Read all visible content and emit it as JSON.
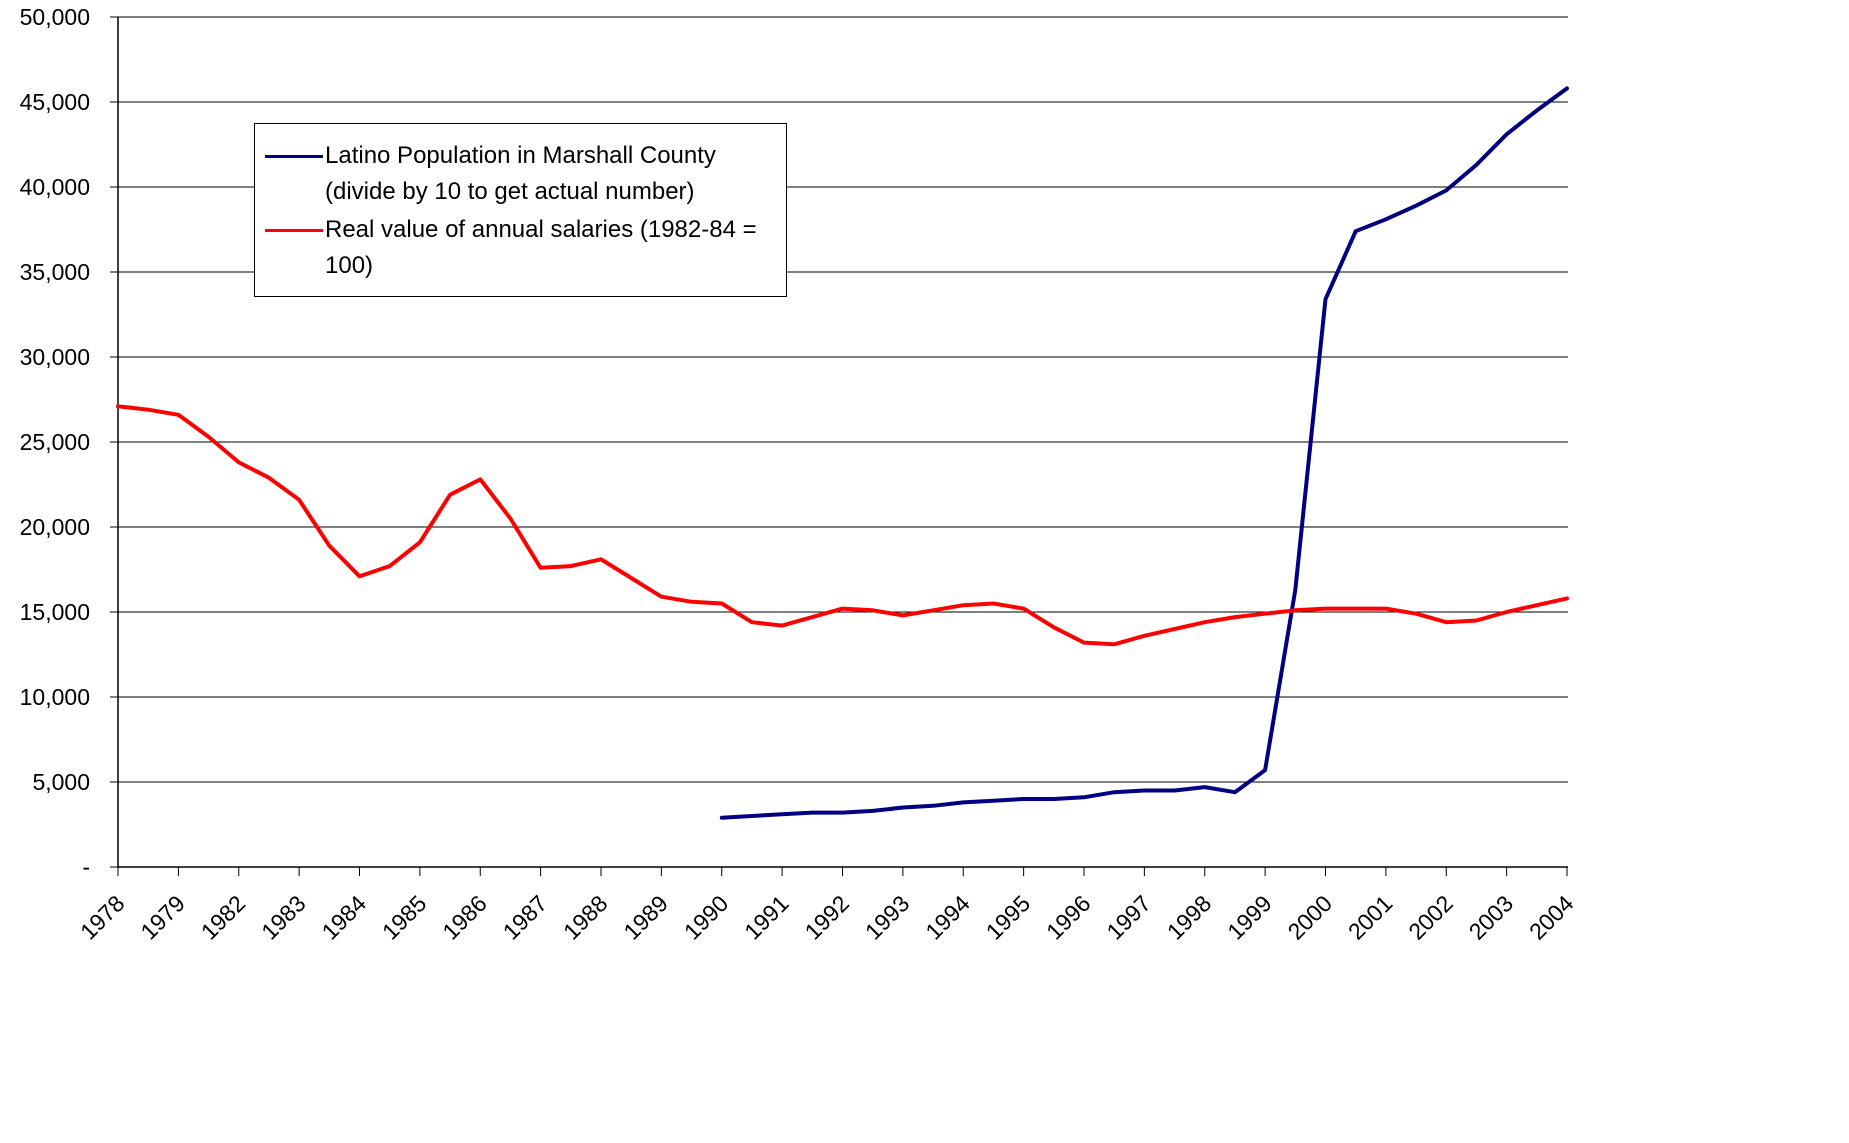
{
  "chart_data": {
    "type": "line",
    "categories": [
      "1978",
      null,
      "1979",
      null,
      "1982",
      null,
      "1983",
      null,
      "1984",
      null,
      "1985",
      null,
      "1986",
      null,
      "1987",
      null,
      "1988",
      null,
      "1989",
      null,
      "1990",
      null,
      "1991",
      null,
      "1992",
      null,
      "1993",
      null,
      "1994",
      null,
      "1995",
      null,
      "1996",
      null,
      "1997",
      null,
      "1998",
      null,
      "1999",
      null,
      "2000",
      null,
      "2001",
      null,
      "2002",
      null,
      "2003",
      null,
      "2004"
    ],
    "series": [
      {
        "name": "Latino Population in Marshall County (divide by 10 to get actual number)",
        "color": "#000080",
        "values": [
          null,
          null,
          null,
          null,
          null,
          null,
          null,
          null,
          null,
          null,
          null,
          null,
          null,
          null,
          null,
          null,
          null,
          null,
          null,
          null,
          2900,
          3000,
          3100,
          3200,
          3200,
          3300,
          3500,
          3600,
          3800,
          3900,
          4000,
          4000,
          4100,
          4400,
          4500,
          4500,
          4700,
          4400,
          5700,
          16300,
          33400,
          37400,
          38100,
          38900,
          39800,
          41300,
          43100,
          44500,
          45800
        ]
      },
      {
        "name": "Real value of annual salaries (1982-84 = 100)",
        "color": "#ff0000",
        "values": [
          27100,
          26900,
          26600,
          25300,
          23800,
          22900,
          21600,
          18900,
          17100,
          17700,
          19100,
          21900,
          22800,
          20500,
          17600,
          17700,
          18100,
          17000,
          15900,
          15600,
          15500,
          14400,
          14200,
          14700,
          15200,
          15100,
          14800,
          15100,
          15400,
          15500,
          15200,
          14100,
          13200,
          13100,
          13600,
          14000,
          14400,
          14700,
          14900,
          15100,
          15200,
          15200,
          15200,
          14900,
          14400,
          14500,
          15000,
          15400,
          15800
        ]
      }
    ],
    "ylim": [
      0,
      50000
    ],
    "yticks": [
      {
        "value": 0,
        "label": "-"
      },
      {
        "value": 5000,
        "label": "5,000"
      },
      {
        "value": 10000,
        "label": "10,000"
      },
      {
        "value": 15000,
        "label": "15,000"
      },
      {
        "value": 20000,
        "label": "20,000"
      },
      {
        "value": 25000,
        "label": "25,000"
      },
      {
        "value": 30000,
        "label": "30,000"
      },
      {
        "value": 35000,
        "label": "35,000"
      },
      {
        "value": 40000,
        "label": "40,000"
      },
      {
        "value": 45000,
        "label": "45,000"
      },
      {
        "value": 50000,
        "label": "50,000"
      }
    ],
    "grid": true
  }
}
